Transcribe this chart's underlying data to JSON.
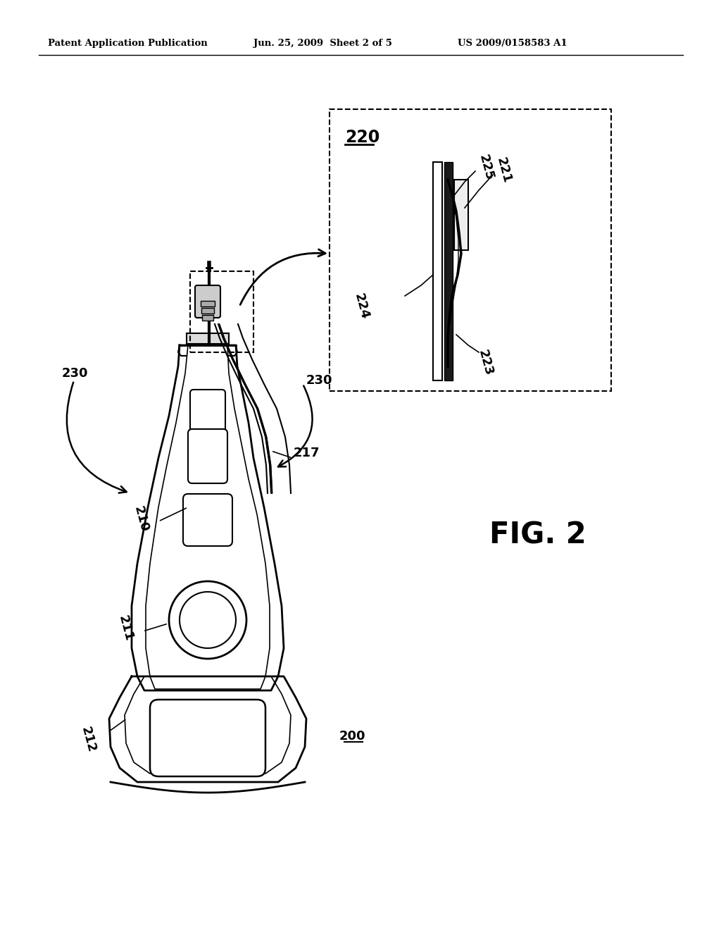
{
  "bg_color": "#ffffff",
  "header_left": "Patent Application Publication",
  "header_mid": "Jun. 25, 2009  Sheet 2 of 5",
  "header_right": "US 2009/0158583 A1",
  "fig_label": "FIG. 2",
  "ref_200": "200",
  "ref_210": "210",
  "ref_211": "211",
  "ref_212": "212",
  "ref_217": "217",
  "ref_230a": "230",
  "ref_230b": "230",
  "ref_220": "220",
  "ref_221": "221",
  "ref_223": "223",
  "ref_224": "224",
  "ref_225": "225"
}
